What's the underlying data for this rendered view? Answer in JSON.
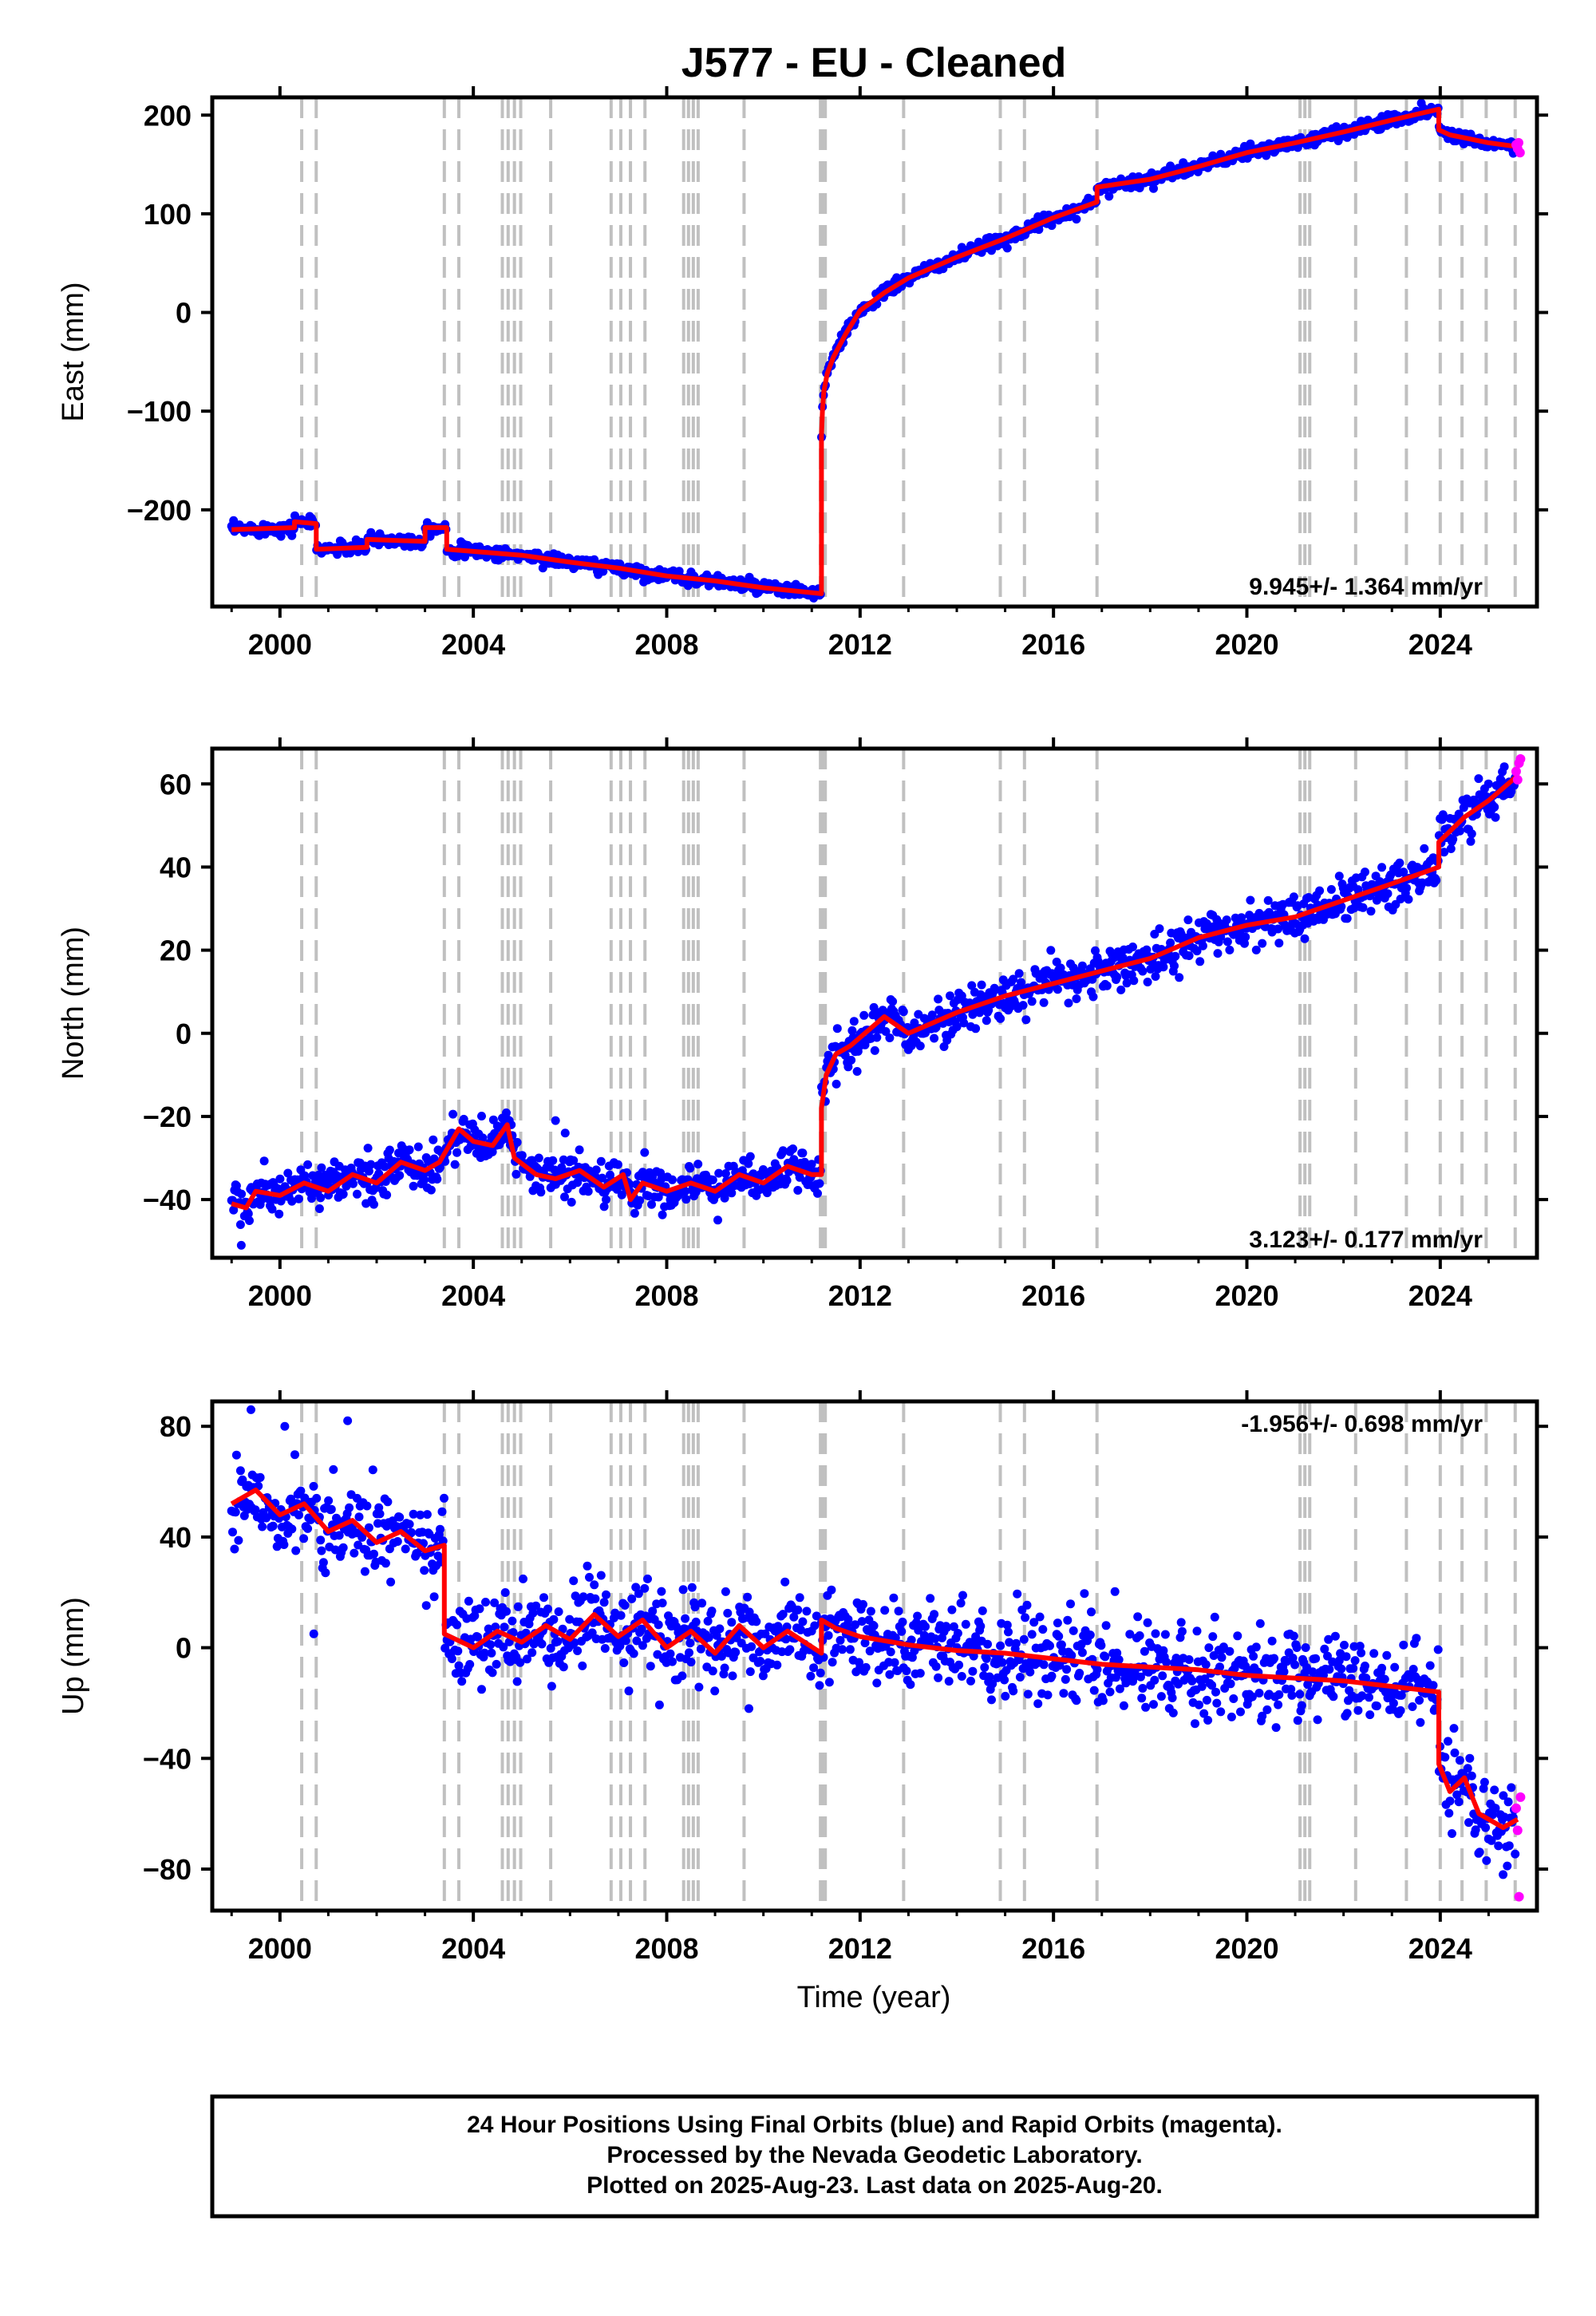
{
  "title": "J577  - EU - Cleaned",
  "xlabel": "Time (year)",
  "colors": {
    "final": "#0000ff",
    "rapid": "#ff00ff",
    "model": "#ff0000",
    "event": "#c0c0c0"
  },
  "xticks": [
    "2000",
    "2004",
    "2008",
    "2012",
    "2016",
    "2020",
    "2024"
  ],
  "footer": {
    "line1": "24 Hour Positions Using Final Orbits (blue) and Rapid Orbits (magenta).",
    "line2": "Processed by the Nevada Geodetic Laboratory.",
    "line3": "Plotted on 2025-Aug-23. Last data on 2025-Aug-20."
  },
  "chart_data": [
    {
      "type": "scatter",
      "name": "east",
      "ylabel": "East (mm)",
      "xlim": [
        1998.6,
        2026.0
      ],
      "ylim": [
        -298,
        218
      ],
      "yticks": [
        "200",
        "100",
        "0",
        "−100",
        "−200"
      ],
      "rate": "9.945+/- 1.364 mm/yr",
      "events": [
        2000.45,
        2000.75,
        2003.4,
        2003.7,
        2004.6,
        2004.72,
        2004.85,
        2004.98,
        2005.6,
        2006.85,
        2007.05,
        2007.25,
        2007.55,
        2008.35,
        2008.45,
        2008.55,
        2008.65,
        2009.6,
        2011.18,
        2011.23,
        2011.28,
        2012.9,
        2014.9,
        2015.4,
        2016.9,
        2021.1,
        2021.2,
        2021.3,
        2022.25,
        2023.3,
        2024.0,
        2024.45,
        2024.95,
        2025.55
      ],
      "series": [
        {
          "name": "model",
          "x": [
            1999.0,
            2000.3,
            2000.3,
            2000.75,
            2000.75,
            2001.8,
            2001.8,
            2003.0,
            2003.0,
            2003.45,
            2003.45,
            2005.0,
            2006.0,
            2007.0,
            2008.0,
            2009.0,
            2010.0,
            2011.2,
            2011.2,
            2011.22,
            2011.25,
            2011.32,
            2011.45,
            2011.7,
            2012.0,
            2012.5,
            2013.0,
            2014.0,
            2015.0,
            2016.0,
            2016.9,
            2016.9,
            2018.0,
            2019.0,
            2020.0,
            2021.0,
            2022.0,
            2023.0,
            2023.97,
            2023.97,
            2024.2,
            2024.6,
            2025.0,
            2025.6
          ],
          "y": [
            -220,
            -218,
            -212,
            -214,
            -240,
            -238,
            -230,
            -232,
            -218,
            -218,
            -240,
            -246,
            -253,
            -259,
            -267,
            -272,
            -279,
            -285,
            -125,
            -100,
            -80,
            -62,
            -45,
            -22,
            2,
            20,
            35,
            56,
            75,
            96,
            112,
            127,
            135,
            148,
            162,
            172,
            183,
            195,
            206,
            185,
            180,
            176,
            172,
            168
          ]
        },
        {
          "name": "rapid",
          "x": [
            2025.57,
            2025.6,
            2025.62,
            2025.65
          ],
          "y": [
            170,
            166,
            172,
            162
          ]
        }
      ]
    },
    {
      "type": "scatter",
      "name": "north",
      "ylabel": "North (mm)",
      "xlim": [
        1998.6,
        2026.0
      ],
      "ylim": [
        -54,
        68.5
      ],
      "yticks": [
        "60",
        "40",
        "20",
        "0",
        "−20",
        "−40"
      ],
      "rate": "3.123+/- 0.177 mm/yr",
      "events": [
        2000.45,
        2000.75,
        2003.4,
        2003.7,
        2004.6,
        2004.72,
        2004.85,
        2004.98,
        2005.6,
        2006.85,
        2007.05,
        2007.25,
        2007.55,
        2008.35,
        2008.45,
        2008.55,
        2008.65,
        2009.6,
        2011.18,
        2011.23,
        2011.28,
        2012.9,
        2014.9,
        2015.4,
        2016.9,
        2021.1,
        2021.2,
        2021.3,
        2022.25,
        2023.3,
        2024.0,
        2024.45,
        2024.95,
        2025.55
      ],
      "series": [
        {
          "name": "model",
          "x": [
            1999.0,
            1999.3,
            1999.5,
            2000.0,
            2000.5,
            2001.0,
            2001.5,
            2002.0,
            2002.5,
            2003.0,
            2003.3,
            2003.7,
            2004.0,
            2004.4,
            2004.7,
            2004.85,
            2005.3,
            2005.7,
            2006.2,
            2006.7,
            2007.1,
            2007.25,
            2007.5,
            2008.0,
            2008.5,
            2009.0,
            2009.5,
            2010.0,
            2010.5,
            2011.0,
            2011.2,
            2011.2,
            2011.3,
            2011.5,
            2011.8,
            2012.5,
            2013.0,
            2014.0,
            2015.0,
            2016.0,
            2017.0,
            2018.0,
            2019.0,
            2020.0,
            2021.0,
            2022.0,
            2023.0,
            2023.97,
            2023.97,
            2024.5,
            2025.0,
            2025.6
          ],
          "y": [
            -41,
            -42,
            -38,
            -39,
            -36,
            -38,
            -34,
            -36,
            -31,
            -33,
            -31,
            -23,
            -26,
            -27,
            -22,
            -30,
            -34,
            -35,
            -33,
            -37,
            -34,
            -40,
            -36,
            -38,
            -36,
            -38,
            -34,
            -36,
            -32,
            -34,
            -34,
            -18,
            -10,
            -5,
            -3,
            4,
            0,
            5,
            9,
            12,
            15,
            18,
            23,
            26,
            28,
            32,
            36,
            40,
            46,
            52,
            56,
            62
          ]
        },
        {
          "name": "rapid",
          "x": [
            2025.57,
            2025.6,
            2025.63,
            2025.66
          ],
          "y": [
            63,
            61,
            65,
            66
          ]
        }
      ]
    },
    {
      "type": "scatter",
      "name": "up",
      "ylabel": "Up (mm)",
      "xlim": [
        1998.6,
        2026.0
      ],
      "ylim": [
        -95,
        89
      ],
      "yticks": [
        "80",
        "40",
        "0",
        "−40",
        "−80"
      ],
      "rate": "-1.956+/- 0.698 mm/yr",
      "events": [
        2000.45,
        2000.75,
        2003.4,
        2003.7,
        2004.6,
        2004.72,
        2004.85,
        2004.98,
        2005.6,
        2006.85,
        2007.05,
        2007.25,
        2007.55,
        2008.35,
        2008.45,
        2008.55,
        2008.65,
        2009.6,
        2011.18,
        2011.23,
        2011.28,
        2012.9,
        2014.9,
        2015.4,
        2016.9,
        2021.1,
        2021.2,
        2021.3,
        2022.25,
        2023.3,
        2024.0,
        2024.45,
        2024.95,
        2025.55
      ],
      "series": [
        {
          "name": "model",
          "x": [
            1999.0,
            1999.5,
            2000.0,
            2000.5,
            2001.0,
            2001.5,
            2002.0,
            2002.5,
            2003.0,
            2003.4,
            2003.4,
            2004.0,
            2004.5,
            2005.0,
            2005.5,
            2006.0,
            2006.5,
            2007.0,
            2007.5,
            2008.0,
            2008.5,
            2009.0,
            2009.5,
            2010.0,
            2010.5,
            2011.2,
            2011.2,
            2011.5,
            2012.0,
            2013.0,
            2014.0,
            2015.0,
            2016.0,
            2017.0,
            2018.0,
            2019.0,
            2020.0,
            2021.0,
            2022.0,
            2023.0,
            2023.97,
            2023.97,
            2024.2,
            2024.5,
            2024.8,
            2025.3,
            2025.6
          ],
          "y": [
            52,
            57,
            48,
            52,
            42,
            46,
            38,
            42,
            35,
            37,
            5,
            0,
            6,
            2,
            8,
            3,
            12,
            4,
            10,
            0,
            6,
            -2,
            8,
            0,
            6,
            -2,
            10,
            7,
            4,
            1,
            -1,
            -2,
            -4,
            -6,
            -7,
            -8,
            -10,
            -11,
            -12,
            -14,
            -16,
            -42,
            -52,
            -47,
            -60,
            -65,
            -62
          ]
        },
        {
          "name": "rapid",
          "x": [
            2025.57,
            2025.6,
            2025.63,
            2025.66
          ],
          "y": [
            -58,
            -66,
            -90,
            -54
          ]
        }
      ]
    }
  ]
}
